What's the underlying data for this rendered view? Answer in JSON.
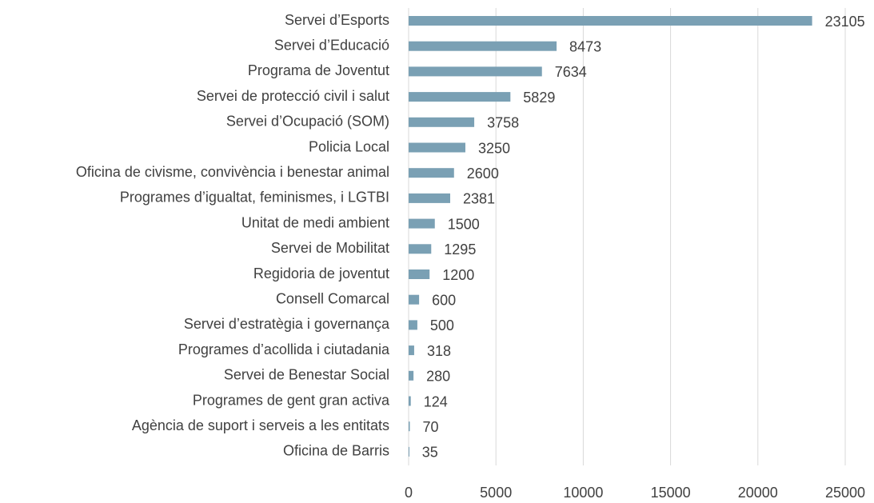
{
  "chart_data": {
    "type": "hbar",
    "categories": [
      "Servei d’Esports",
      "Servei d’Educació",
      "Programa de Joventut",
      "Servei de protecció civil i salut",
      "Servei d’Ocupació (SOM)",
      "Policia Local",
      "Oficina de civisme, convivència i benestar animal",
      "Programes d’igualtat, feminismes, i LGTBI",
      "Unitat de medi ambient",
      "Servei de Mobilitat",
      "Regidoria de joventut",
      "Consell Comarcal",
      "Servei d’estratègia i governança",
      "Programes d’acollida i ciutadania",
      "Servei de Benestar Social",
      "Programes de gent gran activa",
      "Agència de suport i serveis a les entitats",
      "Oficina de Barris"
    ],
    "values": [
      23105,
      8473,
      7634,
      5829,
      3758,
      3250,
      2600,
      2381,
      1500,
      1295,
      1200,
      600,
      500,
      318,
      280,
      124,
      70,
      35
    ],
    "color": "#7aa0b4",
    "xlim": [
      0,
      25000
    ],
    "xticks": [
      0,
      5000,
      10000,
      15000,
      20000,
      25000
    ],
    "grid": true
  }
}
